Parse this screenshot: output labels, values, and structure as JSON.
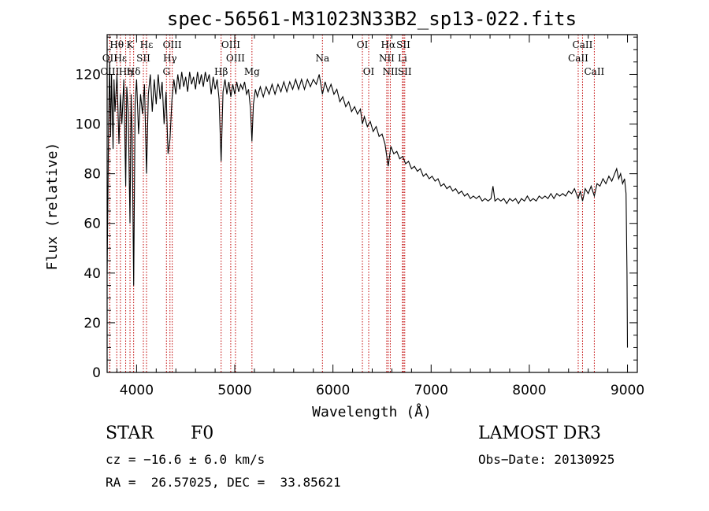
{
  "chart_data": {
    "type": "line",
    "title": "spec-56561-M31023N33B2_sp13-022.fits",
    "xlabel": "Wavelength (Å)",
    "ylabel": "Flux (relative)",
    "xlim": [
      3700,
      9100
    ],
    "ylim": [
      0,
      136
    ],
    "x_ticks": [
      4000,
      5000,
      6000,
      7000,
      8000,
      9000
    ],
    "y_ticks": [
      0,
      20,
      40,
      60,
      80,
      100,
      120
    ],
    "spectrum_points": [
      [
        3700,
        40
      ],
      [
        3715,
        100
      ],
      [
        3725,
        125
      ],
      [
        3735,
        95
      ],
      [
        3745,
        120
      ],
      [
        3760,
        90
      ],
      [
        3770,
        118
      ],
      [
        3780,
        105
      ],
      [
        3800,
        120
      ],
      [
        3820,
        92
      ],
      [
        3835,
        112
      ],
      [
        3850,
        100
      ],
      [
        3870,
        118
      ],
      [
        3889,
        75
      ],
      [
        3900,
        115
      ],
      [
        3915,
        105
      ],
      [
        3933,
        60
      ],
      [
        3945,
        112
      ],
      [
        3955,
        95
      ],
      [
        3970,
        35
      ],
      [
        3985,
        108
      ],
      [
        4000,
        118
      ],
      [
        4020,
        96
      ],
      [
        4040,
        112
      ],
      [
        4060,
        104
      ],
      [
        4080,
        116
      ],
      [
        4101,
        80
      ],
      [
        4120,
        112
      ],
      [
        4140,
        120
      ],
      [
        4160,
        105
      ],
      [
        4180,
        118
      ],
      [
        4200,
        108
      ],
      [
        4220,
        120
      ],
      [
        4240,
        110
      ],
      [
        4260,
        117
      ],
      [
        4280,
        100
      ],
      [
        4300,
        113
      ],
      [
        4320,
        88
      ],
      [
        4340,
        94
      ],
      [
        4360,
        110
      ],
      [
        4380,
        118
      ],
      [
        4400,
        112
      ],
      [
        4420,
        120
      ],
      [
        4440,
        114
      ],
      [
        4460,
        121
      ],
      [
        4480,
        115
      ],
      [
        4500,
        119
      ],
      [
        4520,
        113
      ],
      [
        4540,
        121
      ],
      [
        4560,
        116
      ],
      [
        4580,
        119
      ],
      [
        4600,
        114
      ],
      [
        4620,
        121
      ],
      [
        4640,
        116
      ],
      [
        4660,
        120
      ],
      [
        4680,
        115
      ],
      [
        4700,
        121
      ],
      [
        4720,
        117
      ],
      [
        4740,
        120
      ],
      [
        4760,
        112
      ],
      [
        4780,
        119
      ],
      [
        4800,
        114
      ],
      [
        4820,
        118
      ],
      [
        4840,
        110
      ],
      [
        4861,
        85
      ],
      [
        4880,
        113
      ],
      [
        4900,
        118
      ],
      [
        4920,
        112
      ],
      [
        4940,
        117
      ],
      [
        4960,
        111
      ],
      [
        4980,
        116
      ],
      [
        5000,
        112
      ],
      [
        5020,
        117
      ],
      [
        5040,
        113
      ],
      [
        5060,
        116
      ],
      [
        5080,
        114
      ],
      [
        5100,
        117
      ],
      [
        5120,
        112
      ],
      [
        5140,
        114
      ],
      [
        5160,
        106
      ],
      [
        5175,
        93
      ],
      [
        5190,
        108
      ],
      [
        5210,
        114
      ],
      [
        5230,
        111
      ],
      [
        5260,
        115
      ],
      [
        5290,
        111
      ],
      [
        5320,
        115
      ],
      [
        5350,
        112
      ],
      [
        5380,
        116
      ],
      [
        5410,
        112
      ],
      [
        5440,
        116
      ],
      [
        5470,
        113
      ],
      [
        5500,
        117
      ],
      [
        5530,
        113
      ],
      [
        5560,
        117
      ],
      [
        5590,
        114
      ],
      [
        5620,
        118
      ],
      [
        5650,
        114
      ],
      [
        5680,
        118
      ],
      [
        5710,
        114
      ],
      [
        5740,
        118
      ],
      [
        5770,
        115
      ],
      [
        5800,
        118
      ],
      [
        5830,
        116
      ],
      [
        5860,
        120
      ],
      [
        5893,
        112
      ],
      [
        5920,
        117
      ],
      [
        5950,
        113
      ],
      [
        5980,
        116
      ],
      [
        6010,
        112
      ],
      [
        6040,
        114
      ],
      [
        6070,
        109
      ],
      [
        6100,
        111
      ],
      [
        6130,
        107
      ],
      [
        6160,
        109
      ],
      [
        6190,
        105
      ],
      [
        6220,
        107
      ],
      [
        6250,
        104
      ],
      [
        6280,
        106
      ],
      [
        6300,
        100
      ],
      [
        6320,
        103
      ],
      [
        6350,
        99
      ],
      [
        6380,
        101
      ],
      [
        6410,
        97
      ],
      [
        6440,
        99
      ],
      [
        6470,
        95
      ],
      [
        6500,
        96
      ],
      [
        6530,
        92
      ],
      [
        6563,
        83
      ],
      [
        6590,
        91
      ],
      [
        6620,
        88
      ],
      [
        6650,
        89
      ],
      [
        6680,
        86
      ],
      [
        6710,
        87
      ],
      [
        6740,
        84
      ],
      [
        6770,
        85
      ],
      [
        6800,
        82
      ],
      [
        6830,
        83
      ],
      [
        6860,
        81
      ],
      [
        6890,
        82
      ],
      [
        6920,
        79
      ],
      [
        6950,
        80
      ],
      [
        6980,
        78
      ],
      [
        7010,
        79
      ],
      [
        7040,
        77
      ],
      [
        7070,
        78
      ],
      [
        7100,
        75
      ],
      [
        7130,
        76
      ],
      [
        7160,
        74
      ],
      [
        7190,
        75
      ],
      [
        7220,
        73
      ],
      [
        7250,
        74
      ],
      [
        7280,
        72
      ],
      [
        7310,
        73
      ],
      [
        7340,
        71
      ],
      [
        7370,
        72
      ],
      [
        7400,
        70
      ],
      [
        7430,
        71
      ],
      [
        7460,
        70
      ],
      [
        7490,
        71
      ],
      [
        7520,
        69
      ],
      [
        7550,
        70
      ],
      [
        7580,
        69
      ],
      [
        7610,
        70
      ],
      [
        7630,
        75
      ],
      [
        7650,
        69
      ],
      [
        7680,
        70
      ],
      [
        7710,
        69
      ],
      [
        7740,
        70
      ],
      [
        7770,
        68
      ],
      [
        7800,
        70
      ],
      [
        7830,
        69
      ],
      [
        7860,
        70
      ],
      [
        7890,
        68
      ],
      [
        7920,
        70
      ],
      [
        7950,
        69
      ],
      [
        7980,
        71
      ],
      [
        8010,
        69
      ],
      [
        8040,
        70
      ],
      [
        8070,
        69
      ],
      [
        8100,
        71
      ],
      [
        8130,
        70
      ],
      [
        8160,
        71
      ],
      [
        8190,
        70
      ],
      [
        8220,
        72
      ],
      [
        8250,
        70
      ],
      [
        8280,
        72
      ],
      [
        8310,
        71
      ],
      [
        8340,
        72
      ],
      [
        8370,
        71
      ],
      [
        8400,
        73
      ],
      [
        8430,
        72
      ],
      [
        8460,
        74
      ],
      [
        8498,
        70
      ],
      [
        8520,
        73
      ],
      [
        8542,
        69
      ],
      [
        8570,
        74
      ],
      [
        8600,
        72
      ],
      [
        8630,
        75
      ],
      [
        8662,
        71
      ],
      [
        8690,
        76
      ],
      [
        8720,
        75
      ],
      [
        8750,
        78
      ],
      [
        8780,
        76
      ],
      [
        8810,
        79
      ],
      [
        8840,
        77
      ],
      [
        8870,
        80
      ],
      [
        8890,
        82
      ],
      [
        8910,
        78
      ],
      [
        8930,
        80
      ],
      [
        8950,
        76
      ],
      [
        8970,
        78
      ],
      [
        8985,
        72
      ],
      [
        8995,
        40
      ],
      [
        9000,
        10
      ]
    ],
    "line_markers": [
      {
        "label": "Hθ",
        "x": 3798,
        "row": 1
      },
      {
        "label": "OII",
        "x": 3727,
        "row": 2
      },
      {
        "label": "OIII",
        "x": 3727,
        "row": 3
      },
      {
        "label": "Hε",
        "x": 3835,
        "row": 2
      },
      {
        "label": "Hη",
        "x": 3889,
        "row": 3
      },
      {
        "label": "K",
        "x": 3933,
        "row": 1
      },
      {
        "label": "Hδ",
        "x": 3970,
        "row": 3
      },
      {
        "label": "SII",
        "x": 4069,
        "row": 2
      },
      {
        "label": "Hε",
        "x": 4101,
        "row": 1
      },
      {
        "label": "OIII",
        "x": 4363,
        "row": 1
      },
      {
        "label": "Hγ",
        "x": 4340,
        "row": 2
      },
      {
        "label": "G",
        "x": 4304,
        "row": 3
      },
      {
        "label": "Hβ",
        "x": 4861,
        "row": 3
      },
      {
        "label": "OIII",
        "x": 4959,
        "row": 1
      },
      {
        "label": "OIII",
        "x": 5007,
        "row": 2
      },
      {
        "label": "Mg",
        "x": 5175,
        "row": 3
      },
      {
        "label": "Na",
        "x": 5893,
        "row": 2
      },
      {
        "label": "OI",
        "x": 6300,
        "row": 1
      },
      {
        "label": "OI",
        "x": 6364,
        "row": 3
      },
      {
        "label": "Hα",
        "x": 6563,
        "row": 1
      },
      {
        "label": "NII",
        "x": 6548,
        "row": 2
      },
      {
        "label": "NII",
        "x": 6584,
        "row": 3
      },
      {
        "label": "SII",
        "x": 6717,
        "row": 1
      },
      {
        "label": "Li",
        "x": 6708,
        "row": 2
      },
      {
        "label": "SII",
        "x": 6731,
        "row": 3
      },
      {
        "label": "CaII",
        "x": 8542,
        "row": 1
      },
      {
        "label": "CaII",
        "x": 8498,
        "row": 2
      },
      {
        "label": "CaII",
        "x": 8662,
        "row": 3
      }
    ]
  },
  "info": {
    "object_class": "STAR",
    "subclass": "F0",
    "survey": "LAMOST DR3",
    "velocity": "cz = −16.6 ± 6.0 km/s",
    "obs_date": "Obs−Date: 20130925",
    "coords": "RA =  26.57025, DEC =  33.85621"
  },
  "colors": {
    "marker": "#c00000",
    "spectrum": "#000000"
  }
}
